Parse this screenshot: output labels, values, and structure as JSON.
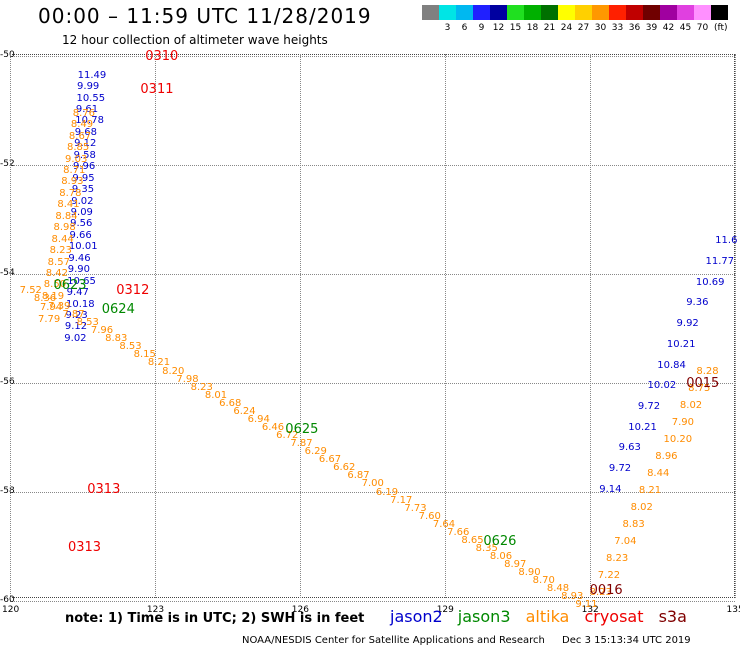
{
  "header": {
    "title": "00:00 – 11:59 UTC 11/28/2019",
    "subtitle": "12 hour collection of altimeter wave heights"
  },
  "legend": {
    "unit": "(ft)",
    "items": [
      {
        "label": "",
        "color": "#808080"
      },
      {
        "label": "3",
        "color": "#00e5e5"
      },
      {
        "label": "6",
        "color": "#00b8f0"
      },
      {
        "label": "9",
        "color": "#2020ff"
      },
      {
        "label": "12",
        "color": "#0000a0"
      },
      {
        "label": "15",
        "color": "#20e020"
      },
      {
        "label": "18",
        "color": "#00b000"
      },
      {
        "label": "21",
        "color": "#007000"
      },
      {
        "label": "24",
        "color": "#ffff00"
      },
      {
        "label": "27",
        "color": "#ffd000"
      },
      {
        "label": "30",
        "color": "#ff9800"
      },
      {
        "label": "33",
        "color": "#ff2000"
      },
      {
        "label": "36",
        "color": "#c00000"
      },
      {
        "label": "39",
        "color": "#700000"
      },
      {
        "label": "42",
        "color": "#a000a0"
      },
      {
        "label": "45",
        "color": "#e040e0"
      },
      {
        "label": "70",
        "color": "#ff90ff"
      },
      {
        "label": "",
        "color": "#000000"
      }
    ]
  },
  "map": {
    "lon_ticks": [
      "120",
      "123",
      "126",
      "129",
      "132",
      "135"
    ],
    "lat_ticks": [
      "-50",
      "-52",
      "-54",
      "-56",
      "-58",
      "-60"
    ],
    "satellites": {
      "jason2": "#0000cc",
      "jason3": "#008800",
      "altika": "#ff8c00",
      "cryosat": "#ee0000",
      "s3a": "#800000"
    },
    "tracks": [
      {
        "sat": "jason2",
        "lon": 121.4,
        "lat": -50.25,
        "step": 0.4,
        "values": [
          "11.49",
          "9.99",
          "10.55",
          "9.61",
          "10.78",
          "9.68",
          "9.12",
          "9.58",
          "9.96",
          "9.95",
          "9.35",
          "9.02",
          "9.09",
          "9.56",
          "9.66",
          "10.01",
          "9.46",
          "9.90",
          "10.65",
          "9.47",
          "10.18",
          "9.23",
          "9.12",
          "9.02"
        ]
      },
      {
        "sat": "altika",
        "lon": 121.3,
        "lat": -50.95,
        "step": 0.4,
        "values": [
          "8.76",
          "8.49",
          "8.67",
          "8.85",
          "9.03",
          "8.71",
          "8.93",
          "8.78",
          "8.41",
          "8.84",
          "8.98",
          "8.44",
          "8.23",
          "8.57",
          "8.42",
          "8.50",
          "8.19",
          "7.94",
          "7.79"
        ]
      },
      {
        "sat": "altika",
        "lon": 120.2,
        "lat": -54.2,
        "step": 0.2,
        "diag": true,
        "values": [
          "7.52",
          "8.36",
          "7.39",
          "7.87",
          "8.53",
          "7.96",
          "8.83",
          "8.53",
          "8.15",
          "8.21",
          "8.20",
          "7.98",
          "8.23",
          "8.01",
          "6.68",
          "6.24",
          "6.94",
          "6.46",
          "6.72",
          "7.87",
          "6.29",
          "6.67",
          "6.62",
          "6.87",
          "7.00",
          "6.19",
          "7.17",
          "7.73",
          "7.60",
          "7.64",
          "7.66",
          "8.65",
          "8.35",
          "8.06",
          "8.97",
          "8.90",
          "8.70",
          "8.48",
          "8.93",
          "9.11"
        ]
      },
      {
        "sat": "altika",
        "lon": 132.0,
        "lat": -59.75,
        "step": 0.4,
        "rise": true,
        "values": [
          "8.23",
          "7.22",
          "8.23",
          "7.04",
          "8.83",
          "8.02",
          "8.21",
          "8.44",
          "8.96",
          "10.20",
          "7.90",
          "8.02",
          "8.75",
          "8.28"
        ]
      },
      {
        "sat": "jason2",
        "lon": 132.2,
        "lat": -57.85,
        "step": 0.4,
        "rise": true,
        "values": [
          "9.14",
          "9.72",
          "9.63",
          "10.21",
          "9.72",
          "10.02",
          "10.84",
          "10.21",
          "9.92",
          "9.36",
          "10.69",
          "11.77",
          "11.6"
        ]
      }
    ],
    "pass_labels": [
      {
        "sat": "cryosat",
        "text": "0310",
        "lon": 122.8,
        "lat": -50.0
      },
      {
        "sat": "cryosat",
        "text": "0311",
        "lon": 122.7,
        "lat": -50.6
      },
      {
        "sat": "jason3",
        "text": "0623",
        "lon": 120.9,
        "lat": -54.2
      },
      {
        "sat": "cryosat",
        "text": "0312",
        "lon": 122.2,
        "lat": -54.3
      },
      {
        "sat": "jason3",
        "text": "0624",
        "lon": 121.9,
        "lat": -54.65
      },
      {
        "sat": "jason3",
        "text": "0625",
        "lon": 125.7,
        "lat": -56.85
      },
      {
        "sat": "cryosat",
        "text": "0313",
        "lon": 121.6,
        "lat": -57.95
      },
      {
        "sat": "cryosat",
        "text": "0313",
        "lon": 121.2,
        "lat": -59.0
      },
      {
        "sat": "jason3",
        "text": "0626",
        "lon": 129.8,
        "lat": -58.9
      },
      {
        "sat": "s3a",
        "text": "0016",
        "lon": 132.0,
        "lat": -59.8
      },
      {
        "sat": "s3a",
        "text": "0015",
        "lon": 134.0,
        "lat": -56.0
      }
    ]
  },
  "note": "note:  1) Time is in UTC;  2) SWH is in feet",
  "sat_legend": {
    "jason2": "jason2",
    "jason3": "jason3",
    "altika": "altika",
    "cryosat": "cryosat",
    "s3a": "s3a"
  },
  "footer": {
    "credit": "NOAA/NESDIS Center for Satellite Applications and Research",
    "generated": "Dec  3 15:13:34 UTC 2019"
  }
}
